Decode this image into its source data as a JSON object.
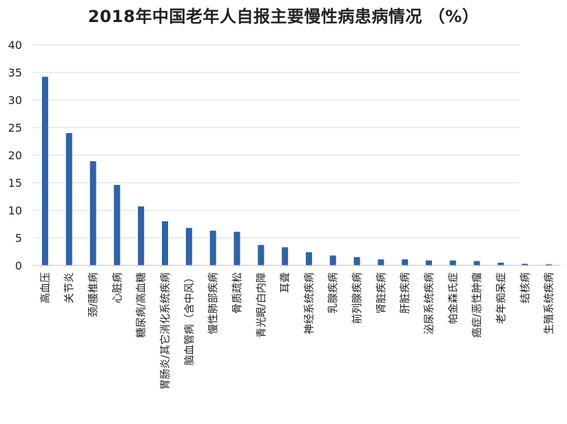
{
  "chart_data": {
    "type": "bar",
    "title": "2018年中国老年人自报主要慢性病患病情况  （%）",
    "xlabel": "",
    "ylabel": "",
    "ylim": [
      0,
      40
    ],
    "yticks": [
      0,
      5,
      10,
      15,
      20,
      25,
      30,
      35,
      40
    ],
    "grid": true,
    "legend": "none",
    "colors": {
      "bar": "#2F62A8",
      "grid": "#D9D9D9",
      "text": "#222222"
    },
    "categories": [
      "高血压",
      "关节炎",
      "颈/腰椎病",
      "心脏病",
      "糖尿病/高血糖",
      "胃肠炎/其它消化系统疾病",
      "脑血管病（含中风）",
      "慢性肺部疾病",
      "骨质疏松",
      "青光眼/白内障",
      "耳聋",
      "神经系统疾病",
      "乳腺疾病",
      "前列腺疾病",
      "肾脏疾病",
      "肝脏疾病",
      "泌尿系统疾病",
      "帕金森氏症",
      "癌症/恶性肿瘤",
      "老年痴呆症",
      "结核病",
      "生殖系统疾病"
    ],
    "values": [
      34.2,
      24.0,
      18.9,
      14.6,
      10.7,
      8.0,
      6.8,
      6.3,
      6.1,
      3.7,
      3.3,
      2.4,
      1.8,
      1.5,
      1.1,
      1.1,
      0.9,
      0.9,
      0.8,
      0.5,
      0.3,
      0.2
    ]
  }
}
